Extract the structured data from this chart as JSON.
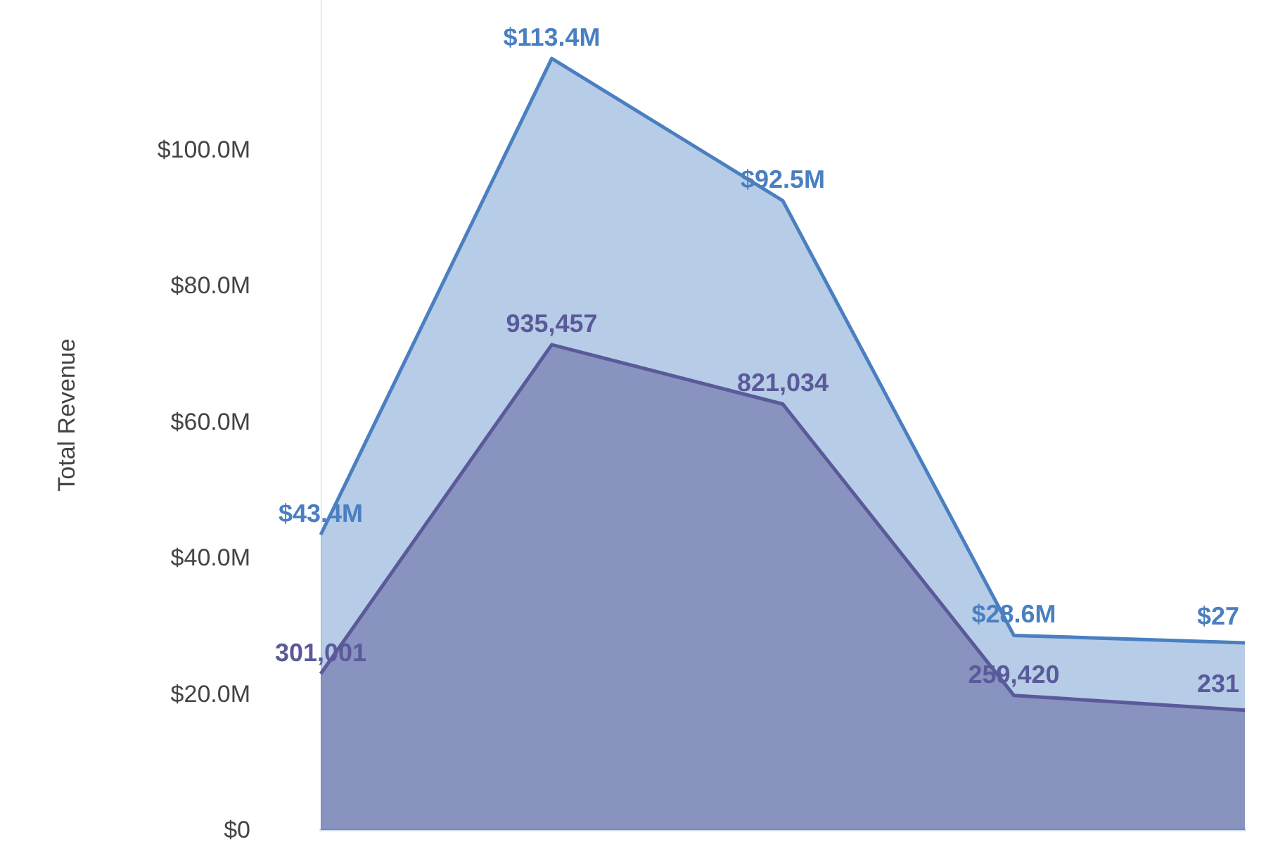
{
  "chart_data": {
    "type": "area",
    "ylabel": "Total Revenue",
    "categories": [
      null,
      null,
      null,
      null,
      null
    ],
    "annotations": [
      "$27",
      "231"
    ],
    "ylim": [
      0,
      122
    ],
    "yticks": [
      {
        "value": 0,
        "label": "$0"
      },
      {
        "value": 20,
        "label": "$20.0M"
      },
      {
        "value": 40,
        "label": "$40.0M"
      },
      {
        "value": 60,
        "label": "$60.0M"
      },
      {
        "value": 80,
        "label": "$80.0M"
      },
      {
        "value": 100,
        "label": "$100.0M"
      }
    ],
    "y2lim": [
      0,
      1600000
    ],
    "tick_labels": "y",
    "grid": false,
    "marker": "none",
    "series": [
      {
        "color": "#4a7fc1",
        "values": [
          43.4,
          113.4,
          92.5,
          28.6,
          27.5
        ],
        "value_labels": [
          "$43.4M",
          "$113.4M",
          "$92.5M",
          "$28.6M",
          null
        ]
      },
      {
        "color": "#5a5a9a",
        "axis": "y2",
        "values": [
          301001,
          935457,
          821034,
          259420,
          231000
        ],
        "value_labels": [
          "301,001",
          "935,457",
          "821,034",
          "259,420",
          null
        ]
      }
    ]
  }
}
